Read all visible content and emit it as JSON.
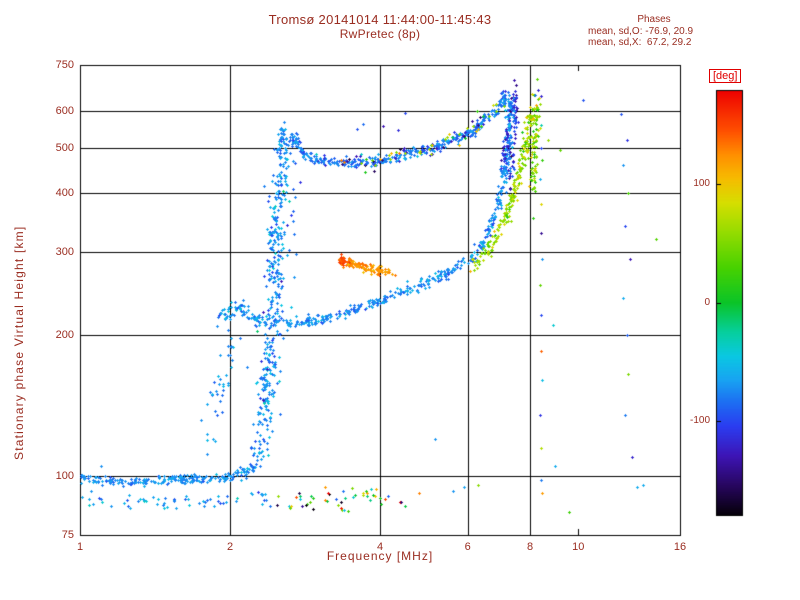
{
  "annotations": {
    "heading": "Phases",
    "line_o": "mean, sd,O: -76.9, 20.9",
    "line_x": "mean, sd,X:  67.2, 29.2"
  },
  "colors": {
    "text": "#9a2d21",
    "deg_label": "#e00000",
    "grid": "#000000",
    "background": "#ffffff"
  },
  "chart_data": {
    "type": "scatter",
    "title": "Tromsø 20141014 11:44:00-11:45:43",
    "subtitle": "RwPretec (8p)",
    "xlabel": "Frequency [MHz]",
    "ylabel": "Stationary phase Virtual Height [km]",
    "xscale": "log",
    "yscale": "log",
    "xlim": [
      1,
      16
    ],
    "ylim": [
      75,
      750
    ],
    "xticks": [
      1,
      2,
      4,
      6,
      8,
      10,
      16
    ],
    "yticks": [
      75,
      100,
      200,
      300,
      400,
      500,
      600,
      750
    ],
    "xgrid": [
      2,
      4,
      6,
      8
    ],
    "ygrid": [
      100,
      200,
      300,
      400,
      500,
      600
    ],
    "colorbar": {
      "label": "[deg]",
      "min": -180,
      "max": 180,
      "ticks": [
        100,
        0,
        -100
      ]
    },
    "colormap": [
      [
        -180,
        "#050008"
      ],
      [
        -155,
        "#27065e"
      ],
      [
        -130,
        "#3d14b4"
      ],
      [
        -105,
        "#2b3cf0"
      ],
      [
        -85,
        "#1d6cf2"
      ],
      [
        -65,
        "#18a4f2"
      ],
      [
        -45,
        "#0ac8e2"
      ],
      [
        -25,
        "#06cf9e"
      ],
      [
        0,
        "#0ac428"
      ],
      [
        30,
        "#48d200"
      ],
      [
        60,
        "#96dc00"
      ],
      [
        85,
        "#d6de00"
      ],
      [
        105,
        "#f6bc00"
      ],
      [
        125,
        "#ff9000"
      ],
      [
        145,
        "#ff5200"
      ],
      [
        180,
        "#ee0000"
      ]
    ],
    "phase_stats": {
      "O": {
        "mean": -76.9,
        "sd": 20.9
      },
      "X": {
        "mean": 67.2,
        "sd": 29.2
      }
    },
    "traces": [
      {
        "name": "e-region",
        "phase": -72,
        "sd": 10,
        "n": 240,
        "jf": 0.004,
        "jh": 0.005,
        "pts": [
          [
            1.0,
            99
          ],
          [
            1.25,
            97
          ],
          [
            1.5,
            99
          ],
          [
            1.75,
            99
          ],
          [
            2.0,
            100
          ],
          [
            2.15,
            102
          ],
          [
            2.25,
            106
          ]
        ]
      },
      {
        "name": "e-region-lower",
        "phase": -70,
        "sd": 18,
        "n": 60,
        "jf": 0.01,
        "jh": 0.007,
        "pts": [
          [
            1.0,
            89
          ],
          [
            1.5,
            88
          ],
          [
            2.0,
            90
          ],
          [
            2.35,
            91
          ]
        ]
      },
      {
        "name": "bottom-noise",
        "phase": 0,
        "sd": 130,
        "n": 45,
        "jf": 0.02,
        "jh": 0.012,
        "pts": [
          [
            2.45,
            90
          ],
          [
            3.0,
            89
          ],
          [
            3.6,
            90
          ],
          [
            4.3,
            91
          ]
        ]
      },
      {
        "name": "e-f-retardation",
        "phase": -70,
        "sd": 14,
        "n": 40,
        "jf": 0.008,
        "jh": 0.02,
        "pts": [
          [
            1.78,
            112
          ],
          [
            1.85,
            126
          ],
          [
            1.9,
            146
          ],
          [
            1.96,
            172
          ],
          [
            2.02,
            200
          ]
        ]
      },
      {
        "name": "cusp-column",
        "phase": -72,
        "sd": 14,
        "n": 320,
        "jf": 0.008,
        "jh": 0.018,
        "pts": [
          [
            2.28,
            110
          ],
          [
            2.33,
            132
          ],
          [
            2.38,
            162
          ],
          [
            2.42,
            200
          ],
          [
            2.45,
            252
          ],
          [
            2.47,
            312
          ],
          [
            2.5,
            372
          ],
          [
            2.54,
            432
          ],
          [
            2.58,
            492
          ],
          [
            2.6,
            512
          ]
        ]
      },
      {
        "name": "cusp-spread",
        "phase": -76,
        "sd": 26,
        "n": 80,
        "jf": 0.018,
        "jh": 0.035,
        "pts": [
          [
            2.32,
            135
          ],
          [
            2.44,
            220
          ],
          [
            2.5,
            330
          ],
          [
            2.56,
            440
          ]
        ]
      },
      {
        "name": "cusp-spike",
        "phase": -74,
        "sd": 10,
        "n": 30,
        "jf": 0.004,
        "jh": 0.012,
        "pts": [
          [
            2.5,
            495
          ],
          [
            2.54,
            545
          ],
          [
            2.58,
            505
          ]
        ]
      },
      {
        "name": "upper-o-arc",
        "phase": -78,
        "sd": 13,
        "n": 380,
        "jf": 0.004,
        "jh": 0.005,
        "pts": [
          [
            2.62,
            515
          ],
          [
            2.7,
            528
          ],
          [
            2.78,
            492
          ],
          [
            2.9,
            476
          ],
          [
            3.1,
            467
          ],
          [
            3.4,
            463
          ],
          [
            3.8,
            466
          ],
          [
            4.2,
            474
          ],
          [
            4.7,
            488
          ],
          [
            5.2,
            504
          ],
          [
            5.7,
            524
          ],
          [
            6.1,
            545
          ],
          [
            6.5,
            575
          ],
          [
            6.85,
            605
          ],
          [
            7.05,
            630
          ],
          [
            7.2,
            652
          ]
        ]
      },
      {
        "name": "upper-arc-dark",
        "phase": -120,
        "sd": 28,
        "n": 55,
        "jf": 0.006,
        "jh": 0.009,
        "pts": [
          [
            3.0,
            470
          ],
          [
            4.0,
            470
          ],
          [
            5.0,
            496
          ],
          [
            6.0,
            540
          ],
          [
            6.8,
            600
          ]
        ]
      },
      {
        "name": "upper-arc-green",
        "phase": 58,
        "sd": 35,
        "n": 40,
        "jf": 0.008,
        "jh": 0.011,
        "pts": [
          [
            3.3,
            462
          ],
          [
            4.3,
            477
          ],
          [
            5.3,
            508
          ],
          [
            6.3,
            558
          ],
          [
            7.0,
            622
          ]
        ]
      },
      {
        "name": "upper-asymptote-dark",
        "phase": -115,
        "sd": 18,
        "n": 60,
        "jf": 0.003,
        "jh": 0.02,
        "pts": [
          [
            7.3,
            430
          ],
          [
            7.38,
            520
          ],
          [
            7.45,
            600
          ],
          [
            7.5,
            658
          ]
        ]
      },
      {
        "name": "x-upper-asymptote",
        "phase": 55,
        "sd": 25,
        "n": 85,
        "jf": 0.004,
        "jh": 0.02,
        "pts": [
          [
            8.1,
            400
          ],
          [
            8.15,
            470
          ],
          [
            8.2,
            545
          ],
          [
            8.25,
            625
          ]
        ]
      },
      {
        "name": "f-cusp-bump",
        "phase": -70,
        "sd": 12,
        "n": 70,
        "jf": 0.005,
        "jh": 0.008,
        "pts": [
          [
            1.9,
            212
          ],
          [
            2.0,
            227
          ],
          [
            2.1,
            230
          ],
          [
            2.2,
            220
          ],
          [
            2.33,
            213
          ]
        ]
      },
      {
        "name": "f-lower-o",
        "phase": -73,
        "sd": 12,
        "n": 470,
        "jf": 0.004,
        "jh": 0.006,
        "pts": [
          [
            2.42,
            215
          ],
          [
            2.7,
            211
          ],
          [
            3.0,
            215
          ],
          [
            3.4,
            223
          ],
          [
            3.8,
            232
          ],
          [
            4.2,
            242
          ],
          [
            4.6,
            250
          ],
          [
            5.0,
            260
          ],
          [
            5.5,
            272
          ],
          [
            6.0,
            288
          ],
          [
            6.4,
            310
          ],
          [
            6.65,
            338
          ],
          [
            6.9,
            372
          ],
          [
            7.05,
            420
          ],
          [
            7.15,
            470
          ],
          [
            7.22,
            530
          ],
          [
            7.28,
            600
          ],
          [
            7.32,
            645
          ]
        ]
      },
      {
        "name": "f-lower-asymptote-dark",
        "phase": -112,
        "sd": 18,
        "n": 35,
        "jf": 0.004,
        "jh": 0.014,
        "pts": [
          [
            7.05,
            462
          ],
          [
            7.18,
            540
          ],
          [
            7.28,
            612
          ]
        ]
      },
      {
        "name": "x-lower",
        "phase": 62,
        "sd": 20,
        "n": 200,
        "jf": 0.004,
        "jh": 0.007,
        "pts": [
          [
            6.1,
            278
          ],
          [
            6.4,
            292
          ],
          [
            6.7,
            312
          ],
          [
            7.0,
            338
          ],
          [
            7.25,
            372
          ],
          [
            7.5,
            418
          ],
          [
            7.7,
            470
          ],
          [
            7.85,
            525
          ],
          [
            7.95,
            572
          ],
          [
            8.05,
            615
          ]
        ]
      },
      {
        "name": "orange-segment",
        "phase": 122,
        "sd": 10,
        "n": 110,
        "jf": 0.003,
        "jh": 0.005,
        "pts": [
          [
            3.35,
            287
          ],
          [
            3.6,
            281
          ],
          [
            3.85,
            276
          ],
          [
            4.1,
            272
          ],
          [
            4.25,
            270
          ]
        ]
      },
      {
        "name": "orange-red-tip",
        "phase": 148,
        "sd": 8,
        "n": 18,
        "jf": 0.003,
        "jh": 0.005,
        "pts": [
          [
            3.32,
            289
          ],
          [
            3.42,
            286
          ]
        ]
      },
      {
        "name": "sparse-column-8.4MHz",
        "exact": true,
        "phase": -60,
        "pts": [
          [
            8.4,
            645,
            -120
          ],
          [
            8.38,
            620,
            60
          ],
          [
            8.42,
            560,
            -30
          ],
          [
            8.4,
            500,
            -100
          ],
          [
            8.45,
            470,
            20
          ],
          [
            8.38,
            430,
            -60
          ],
          [
            8.42,
            380,
            90
          ],
          [
            8.4,
            330,
            -140
          ],
          [
            8.44,
            290,
            -70
          ],
          [
            8.38,
            255,
            40
          ],
          [
            8.42,
            220,
            -100
          ],
          [
            8.4,
            185,
            140
          ],
          [
            8.44,
            160,
            -50
          ],
          [
            8.38,
            135,
            -110
          ],
          [
            8.42,
            115,
            70
          ],
          [
            8.4,
            98,
            -80
          ],
          [
            8.45,
            92,
            120
          ]
        ]
      },
      {
        "name": "sparse-column-12.5MHz",
        "exact": true,
        "phase": -80,
        "pts": [
          [
            12.2,
            590,
            -95
          ],
          [
            12.5,
            520,
            -110
          ],
          [
            12.3,
            460,
            -70
          ],
          [
            12.6,
            400,
            30
          ],
          [
            12.4,
            340,
            -100
          ],
          [
            12.7,
            290,
            -130
          ],
          [
            12.3,
            240,
            -60
          ],
          [
            12.5,
            200,
            -90
          ],
          [
            12.6,
            165,
            50
          ],
          [
            12.4,
            135,
            -80
          ],
          [
            12.8,
            110,
            -120
          ],
          [
            13.1,
            95,
            -60
          ]
        ]
      },
      {
        "name": "isolated-points",
        "exact": true,
        "phase": -70,
        "pts": [
          [
            4.05,
            555,
            -130
          ],
          [
            4.5,
            592,
            -100
          ],
          [
            3.6,
            548,
            -95
          ],
          [
            3.7,
            562,
            -85
          ],
          [
            4.35,
            545,
            -115
          ],
          [
            5.15,
            120,
            -70
          ],
          [
            9.2,
            495,
            40
          ],
          [
            8.7,
            520,
            60
          ],
          [
            8.9,
            210,
            -40
          ],
          [
            9.0,
            105,
            -60
          ],
          [
            9.6,
            84,
            25
          ],
          [
            10.2,
            632,
            -95
          ],
          [
            14.3,
            320,
            35
          ],
          [
            13.5,
            96,
            -60
          ],
          [
            8.3,
            662,
            -120
          ],
          [
            8.2,
            648,
            -85
          ],
          [
            5.9,
            95,
            -65
          ],
          [
            6.3,
            96,
            55
          ],
          [
            5.6,
            93,
            -70
          ],
          [
            4.8,
            92,
            130
          ],
          [
            4.4,
            88,
            -150
          ],
          [
            3.9,
            91,
            100
          ],
          [
            3.1,
            95,
            120
          ],
          [
            3.3,
            87,
            55
          ],
          [
            2.75,
            92,
            -160
          ],
          [
            2.9,
            88,
            40
          ],
          [
            2.6,
            205,
            -70
          ],
          [
            1.1,
            105,
            -72
          ],
          [
            1.05,
            93,
            -70
          ]
        ]
      }
    ]
  }
}
